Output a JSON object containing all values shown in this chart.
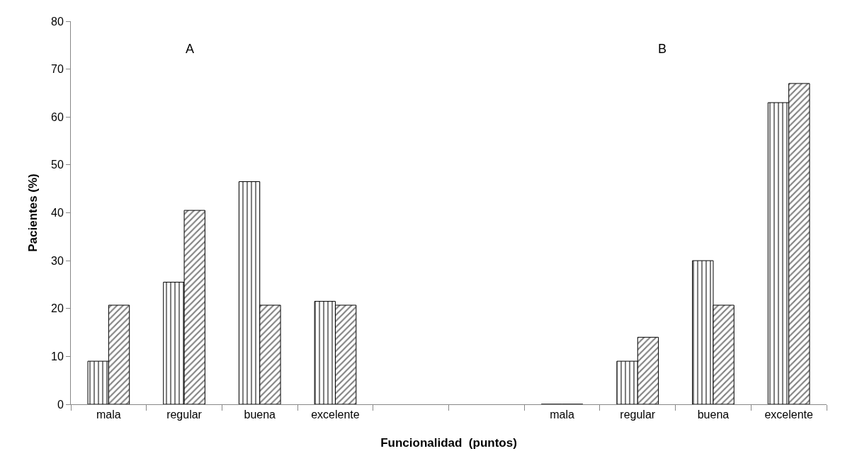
{
  "chart_data": {
    "type": "bar",
    "xlabel": "Funcionalidad  (puntos)",
    "ylabel": "Pacientes (%)",
    "categories": [
      "mala",
      "regular",
      "buena",
      "excelente",
      null,
      null,
      "mala",
      "regular",
      "buena",
      "excelente"
    ],
    "series": [
      {
        "values": [
          9,
          25.5,
          46.5,
          21.5,
          null,
          null,
          0,
          9,
          30,
          63
        ]
      },
      {
        "values": [
          20.7,
          40.5,
          20.7,
          20.7,
          null,
          null,
          0,
          14,
          20.7,
          67
        ]
      }
    ],
    "ylim": [
      0,
      80
    ],
    "yticks": [
      0,
      10,
      20,
      30,
      40,
      50,
      60,
      70,
      80
    ],
    "annotations": [
      "A",
      "B"
    ]
  }
}
